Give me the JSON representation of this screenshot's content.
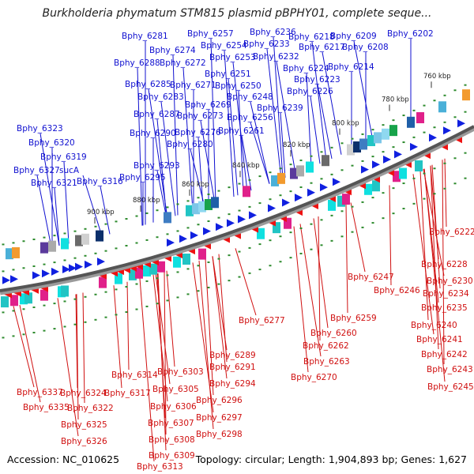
{
  "title": "Burkholderia phymatum STM815 plasmid pBPHY01, complete seque...",
  "footer": {
    "accession": "Accession: NC_010625",
    "summary": "Topology: circular; Length: 1,904,893 bp; Genes: 1,627"
  },
  "ticks": [
    "760 kbp",
    "780 kbp",
    "800 kbp",
    "820 kbp",
    "840 kbp",
    "860 kbp",
    "880 kbp",
    "900 kbp"
  ],
  "upper_labels": [
    "Bphy_6281",
    "Bphy_6257",
    "Bphy_6236",
    "Bphy_6218",
    "Bphy_6209",
    "Bphy_6202",
    "Bphy_6274",
    "Bphy_6254",
    "Bphy_6233",
    "Bphy_6217",
    "Bphy_6208",
    "Bphy_6288",
    "Bphy_6272",
    "Bphy_6253",
    "Bphy_6232",
    "Bphy_6214",
    "Bphy_6224",
    "Bphy_6251",
    "Bphy_6223",
    "Bphy_6285",
    "Bphy_6271",
    "Bphy_6250",
    "Bphy_6226",
    "Bphy_6283",
    "Bphy_6248",
    "Bphy_6269",
    "Bphy_6239",
    "Bphy_6287",
    "Bphy_6273",
    "Bphy_6256",
    "Bphy_6290",
    "Bphy_6276",
    "Bphy_6261",
    "Bphy_6280",
    "Bphy_6323",
    "Bphy_6320",
    "Bphy_6319",
    "Bphy_6293",
    "Bphy_6327",
    "sucA",
    "Bphy_6295",
    "Bphy_6321",
    "Bphy_6316"
  ],
  "lower_labels": [
    "Bphy_6222",
    "Bphy_6228",
    "Bphy_6247",
    "Bphy_6230",
    "Bphy_6246",
    "Bphy_6234",
    "Bphy_6235",
    "Bphy_6277",
    "Bphy_6259",
    "Bphy_6240",
    "Bphy_6260",
    "Bphy_6241",
    "Bphy_6262",
    "Bphy_6242",
    "Bphy_6289",
    "Bphy_6263",
    "Bphy_6243",
    "Bphy_6291",
    "Bphy_6270",
    "Bphy_6245",
    "Bphy_6314",
    "Bphy_6303",
    "Bphy_6294",
    "Bphy_6337",
    "Bphy_6324",
    "Bphy_6317",
    "Bphy_6305",
    "Bphy_6335",
    "Bphy_6322",
    "Bphy_6296",
    "Bphy_6306",
    "Bphy_6297",
    "Bphy_6325",
    "Bphy_6307",
    "Bphy_6298",
    "Bphy_6326",
    "Bphy_6308",
    "Bphy_6309",
    "Bphy_6313"
  ]
}
